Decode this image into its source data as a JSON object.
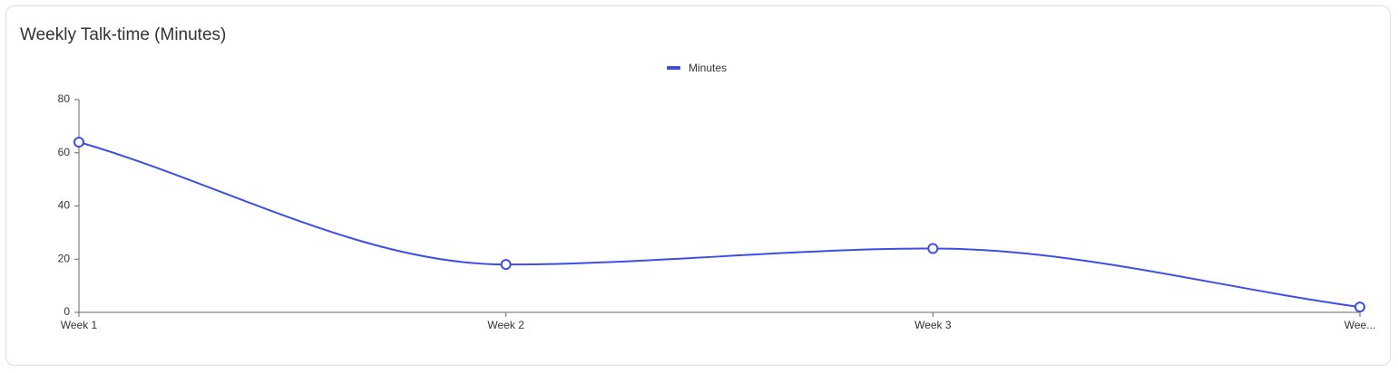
{
  "chart_data": {
    "type": "line",
    "title": "Weekly Talk-time (Minutes)",
    "categories": [
      "Week 1",
      "Week 2",
      "Week 3",
      "Wee..."
    ],
    "series": [
      {
        "name": "Minutes",
        "color": "#3d4ee6",
        "values": [
          64,
          18,
          24,
          2
        ]
      }
    ],
    "ylim": [
      0,
      80
    ],
    "yticks": [
      0,
      20,
      40,
      60,
      80
    ],
    "grid": false,
    "legend": "top"
  }
}
